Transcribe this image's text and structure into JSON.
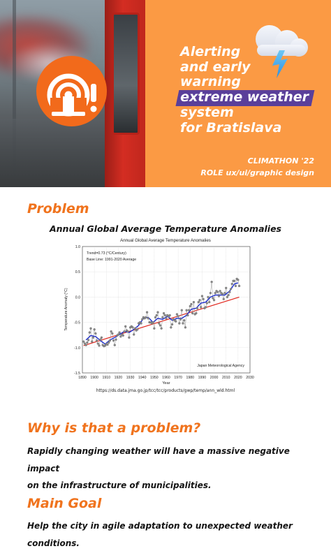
{
  "hero": {
    "tagline_lines": [
      "Alerting",
      "and early",
      "warning",
      "extreme weather",
      "system",
      "for Bratislava"
    ],
    "event": "CLIMATHON '22",
    "role": "ROLE ux/ui/graphic design",
    "brand_orange": "#fb9a44",
    "highlight_purple": "#5a3f9a",
    "logo_icon": "alert-broadcast-icon",
    "cloud_icon": "storm-cloud-icon"
  },
  "problem": {
    "title": "Problem",
    "chart_heading": "Annual Global Average Temperature Anomalies",
    "source_url": "https://ds.data.jma.go.jp/tcc/tcc/products/gwp/temp/ann_wld.html"
  },
  "why": {
    "title": "Why is that a problem?",
    "text_lines": [
      "Rapidly changing weather will have a massive negative impact",
      "on the infrastructure of municipalities."
    ]
  },
  "goal": {
    "title": "Main Goal",
    "text_lines": [
      "Help the city in agile adaptation to unexpected weather",
      "conditions."
    ]
  },
  "accent_color": "#f0731d",
  "chart_data": {
    "type": "line",
    "title": "Annual Global Average Temperature Anomalies",
    "xlabel": "Year",
    "ylabel": "Temperature Anomaly (°C)",
    "annotations": [
      "Trend=0.73 (°C/Century)",
      "Base Line: 1991-2020 Average",
      "Japan Meteorological Agency"
    ],
    "xlim": [
      1890,
      2030
    ],
    "ylim": [
      -1.5,
      1.0
    ],
    "xticks": [
      1890,
      1900,
      1910,
      1920,
      1930,
      1940,
      1950,
      1960,
      1970,
      1980,
      1990,
      2000,
      2010,
      2020,
      2030
    ],
    "yticks": [
      1.0,
      0.5,
      0.0,
      -0.5,
      -1.0,
      -1.5
    ],
    "series": [
      {
        "color": "#808080",
        "style": "points",
        "x": [
          1891,
          1892,
          1893,
          1894,
          1895,
          1896,
          1897,
          1898,
          1899,
          1900,
          1901,
          1902,
          1903,
          1904,
          1905,
          1906,
          1907,
          1908,
          1909,
          1910,
          1911,
          1912,
          1913,
          1914,
          1915,
          1916,
          1917,
          1918,
          1919,
          1920,
          1921,
          1922,
          1923,
          1924,
          1925,
          1926,
          1927,
          1928,
          1929,
          1930,
          1931,
          1932,
          1933,
          1934,
          1935,
          1936,
          1937,
          1938,
          1939,
          1940,
          1941,
          1942,
          1943,
          1944,
          1945,
          1946,
          1947,
          1948,
          1949,
          1950,
          1951,
          1952,
          1953,
          1954,
          1955,
          1956,
          1957,
          1958,
          1959,
          1960,
          1961,
          1962,
          1963,
          1964,
          1965,
          1966,
          1967,
          1968,
          1969,
          1970,
          1971,
          1972,
          1973,
          1974,
          1975,
          1976,
          1977,
          1978,
          1979,
          1980,
          1981,
          1982,
          1983,
          1984,
          1985,
          1986,
          1987,
          1988,
          1989,
          1990,
          1991,
          1992,
          1993,
          1994,
          1995,
          1996,
          1997,
          1998,
          1999,
          2000,
          2001,
          2002,
          2003,
          2004,
          2005,
          2006,
          2007,
          2008,
          2009,
          2010,
          2011,
          2012,
          2013,
          2014,
          2015,
          2016,
          2017,
          2018,
          2019,
          2020,
          2021
        ],
        "y": [
          -0.88,
          -0.92,
          -0.95,
          -0.9,
          -0.85,
          -0.7,
          -0.62,
          -0.88,
          -0.8,
          -0.64,
          -0.72,
          -0.86,
          -0.92,
          -0.96,
          -0.84,
          -0.8,
          -0.95,
          -0.97,
          -0.96,
          -0.93,
          -0.94,
          -0.9,
          -0.86,
          -0.68,
          -0.72,
          -0.86,
          -0.95,
          -0.84,
          -0.76,
          -0.74,
          -0.7,
          -0.78,
          -0.74,
          -0.76,
          -0.68,
          -0.58,
          -0.66,
          -0.68,
          -0.8,
          -0.6,
          -0.58,
          -0.6,
          -0.74,
          -0.62,
          -0.66,
          -0.64,
          -0.52,
          -0.5,
          -0.52,
          -0.44,
          -0.4,
          -0.42,
          -0.4,
          -0.3,
          -0.42,
          -0.5,
          -0.5,
          -0.52,
          -0.5,
          -0.62,
          -0.4,
          -0.36,
          -0.3,
          -0.52,
          -0.56,
          -0.62,
          -0.4,
          -0.32,
          -0.36,
          -0.42,
          -0.36,
          -0.38,
          -0.36,
          -0.6,
          -0.54,
          -0.44,
          -0.46,
          -0.48,
          -0.34,
          -0.38,
          -0.52,
          -0.44,
          -0.26,
          -0.52,
          -0.46,
          -0.6,
          -0.26,
          -0.36,
          -0.26,
          -0.18,
          -0.14,
          -0.32,
          -0.1,
          -0.34,
          -0.32,
          -0.22,
          -0.1,
          -0.06,
          -0.2,
          0.02,
          -0.04,
          -0.22,
          -0.2,
          -0.12,
          0.0,
          -0.1,
          0.08,
          0.3,
          -0.02,
          -0.06,
          0.08,
          0.12,
          0.1,
          0.02,
          0.12,
          0.08,
          0.06,
          -0.04,
          0.08,
          0.18,
          0.0,
          0.04,
          0.1,
          0.16,
          0.26,
          0.32,
          0.32,
          0.22,
          0.36,
          0.34,
          0.22
        ]
      },
      {
        "color": "#1f2fcc",
        "style": "smoothed-line",
        "x": [
          1893,
          1897,
          1901,
          1905,
          1909,
          1913,
          1917,
          1921,
          1925,
          1929,
          1933,
          1937,
          1941,
          1945,
          1949,
          1953,
          1957,
          1961,
          1965,
          1969,
          1973,
          1977,
          1981,
          1985,
          1989,
          1993,
          1997,
          2001,
          2005,
          2009,
          2013,
          2017,
          2020
        ],
        "y": [
          -0.85,
          -0.76,
          -0.78,
          -0.86,
          -0.93,
          -0.85,
          -0.8,
          -0.74,
          -0.68,
          -0.7,
          -0.64,
          -0.56,
          -0.42,
          -0.4,
          -0.5,
          -0.42,
          -0.44,
          -0.38,
          -0.46,
          -0.42,
          -0.42,
          -0.36,
          -0.24,
          -0.22,
          -0.12,
          -0.1,
          0.0,
          0.04,
          0.04,
          0.04,
          0.12,
          0.26,
          0.28
        ]
      },
      {
        "color": "#e0241b",
        "style": "trend-line",
        "x": [
          1891,
          2021
        ],
        "y": [
          -0.96,
          0.0
        ]
      }
    ]
  }
}
